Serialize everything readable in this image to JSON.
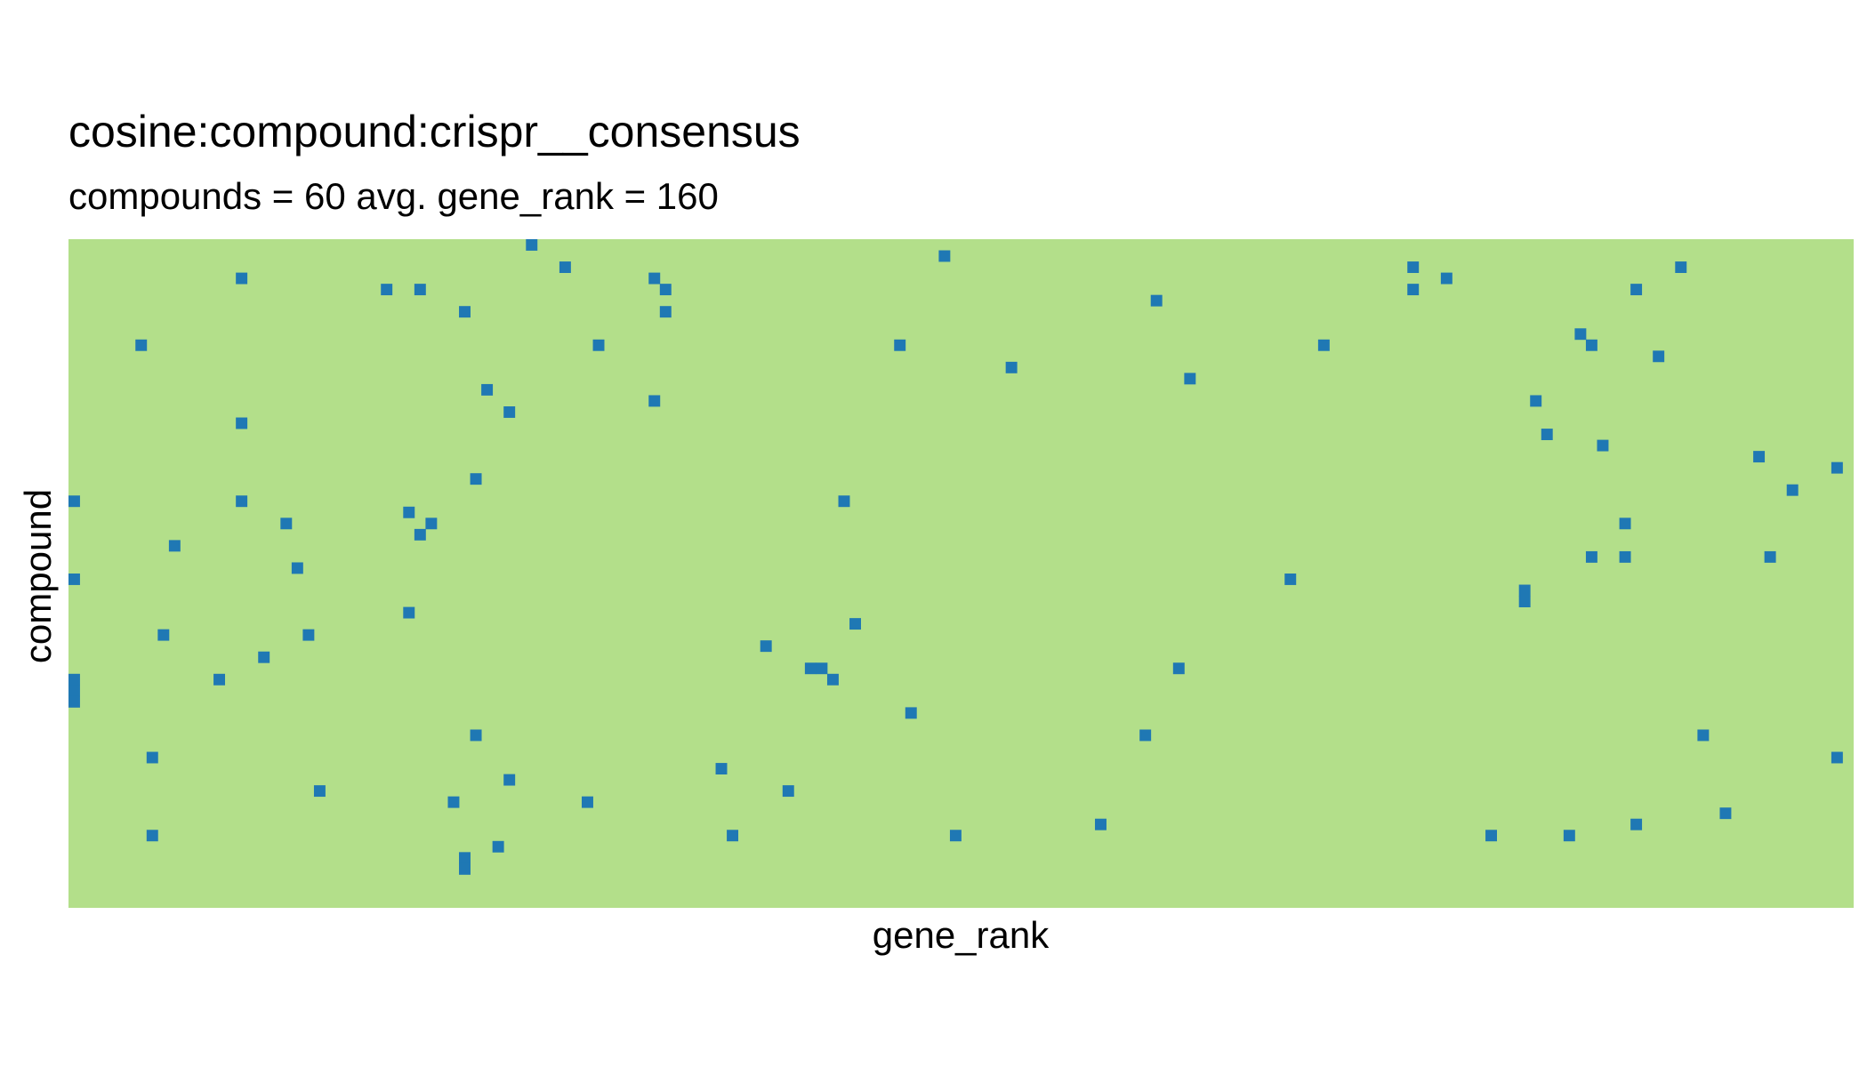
{
  "chart_data": {
    "type": "heatmap",
    "title": "cosine:compound:crispr__consensus",
    "subtitle": "compounds = 60 avg. gene_rank = 160",
    "xlabel": "gene_rank",
    "ylabel": "compound",
    "n_rows": 60,
    "n_cols": 160,
    "x_ticks": false,
    "y_ticks": false,
    "grid": false,
    "legend": "none",
    "colors": {
      "background": "#b3df8a",
      "hit": "#1f78b4"
    },
    "hits": [
      [
        0,
        41
      ],
      [
        1,
        78
      ],
      [
        2,
        44
      ],
      [
        2,
        120
      ],
      [
        2,
        144
      ],
      [
        3,
        15
      ],
      [
        3,
        52
      ],
      [
        3,
        123
      ],
      [
        4,
        28
      ],
      [
        4,
        31
      ],
      [
        4,
        53
      ],
      [
        4,
        120
      ],
      [
        4,
        140
      ],
      [
        5,
        97
      ],
      [
        6,
        35
      ],
      [
        6,
        53
      ],
      [
        8,
        135
      ],
      [
        9,
        6
      ],
      [
        9,
        47
      ],
      [
        9,
        74
      ],
      [
        9,
        112
      ],
      [
        9,
        136
      ],
      [
        10,
        142
      ],
      [
        11,
        84
      ],
      [
        12,
        100
      ],
      [
        13,
        37
      ],
      [
        14,
        52
      ],
      [
        14,
        131
      ],
      [
        15,
        39
      ],
      [
        16,
        15
      ],
      [
        17,
        132
      ],
      [
        18,
        137
      ],
      [
        19,
        151
      ],
      [
        20,
        158
      ],
      [
        21,
        36
      ],
      [
        22,
        154
      ],
      [
        23,
        0
      ],
      [
        23,
        15
      ],
      [
        23,
        69
      ],
      [
        24,
        30
      ],
      [
        25,
        19
      ],
      [
        25,
        32
      ],
      [
        25,
        139
      ],
      [
        26,
        31
      ],
      [
        27,
        9
      ],
      [
        28,
        136
      ],
      [
        28,
        139
      ],
      [
        28,
        152
      ],
      [
        29,
        20
      ],
      [
        30,
        0
      ],
      [
        30,
        109
      ],
      [
        31,
        130
      ],
      [
        32,
        130
      ],
      [
        33,
        30
      ],
      [
        34,
        70
      ],
      [
        35,
        8
      ],
      [
        35,
        21
      ],
      [
        36,
        62
      ],
      [
        37,
        17
      ],
      [
        38,
        66
      ],
      [
        38,
        67
      ],
      [
        38,
        99
      ],
      [
        39,
        0
      ],
      [
        39,
        13
      ],
      [
        39,
        68
      ],
      [
        40,
        0
      ],
      [
        41,
        0
      ],
      [
        42,
        75
      ],
      [
        44,
        36
      ],
      [
        44,
        96
      ],
      [
        44,
        146
      ],
      [
        46,
        7
      ],
      [
        46,
        158
      ],
      [
        47,
        58
      ],
      [
        48,
        39
      ],
      [
        49,
        22
      ],
      [
        49,
        64
      ],
      [
        50,
        34
      ],
      [
        50,
        46
      ],
      [
        51,
        148
      ],
      [
        52,
        92
      ],
      [
        52,
        140
      ],
      [
        53,
        7
      ],
      [
        53,
        59
      ],
      [
        53,
        79
      ],
      [
        53,
        127
      ],
      [
        53,
        134
      ],
      [
        54,
        38
      ],
      [
        55,
        35
      ],
      [
        56,
        35
      ]
    ]
  }
}
